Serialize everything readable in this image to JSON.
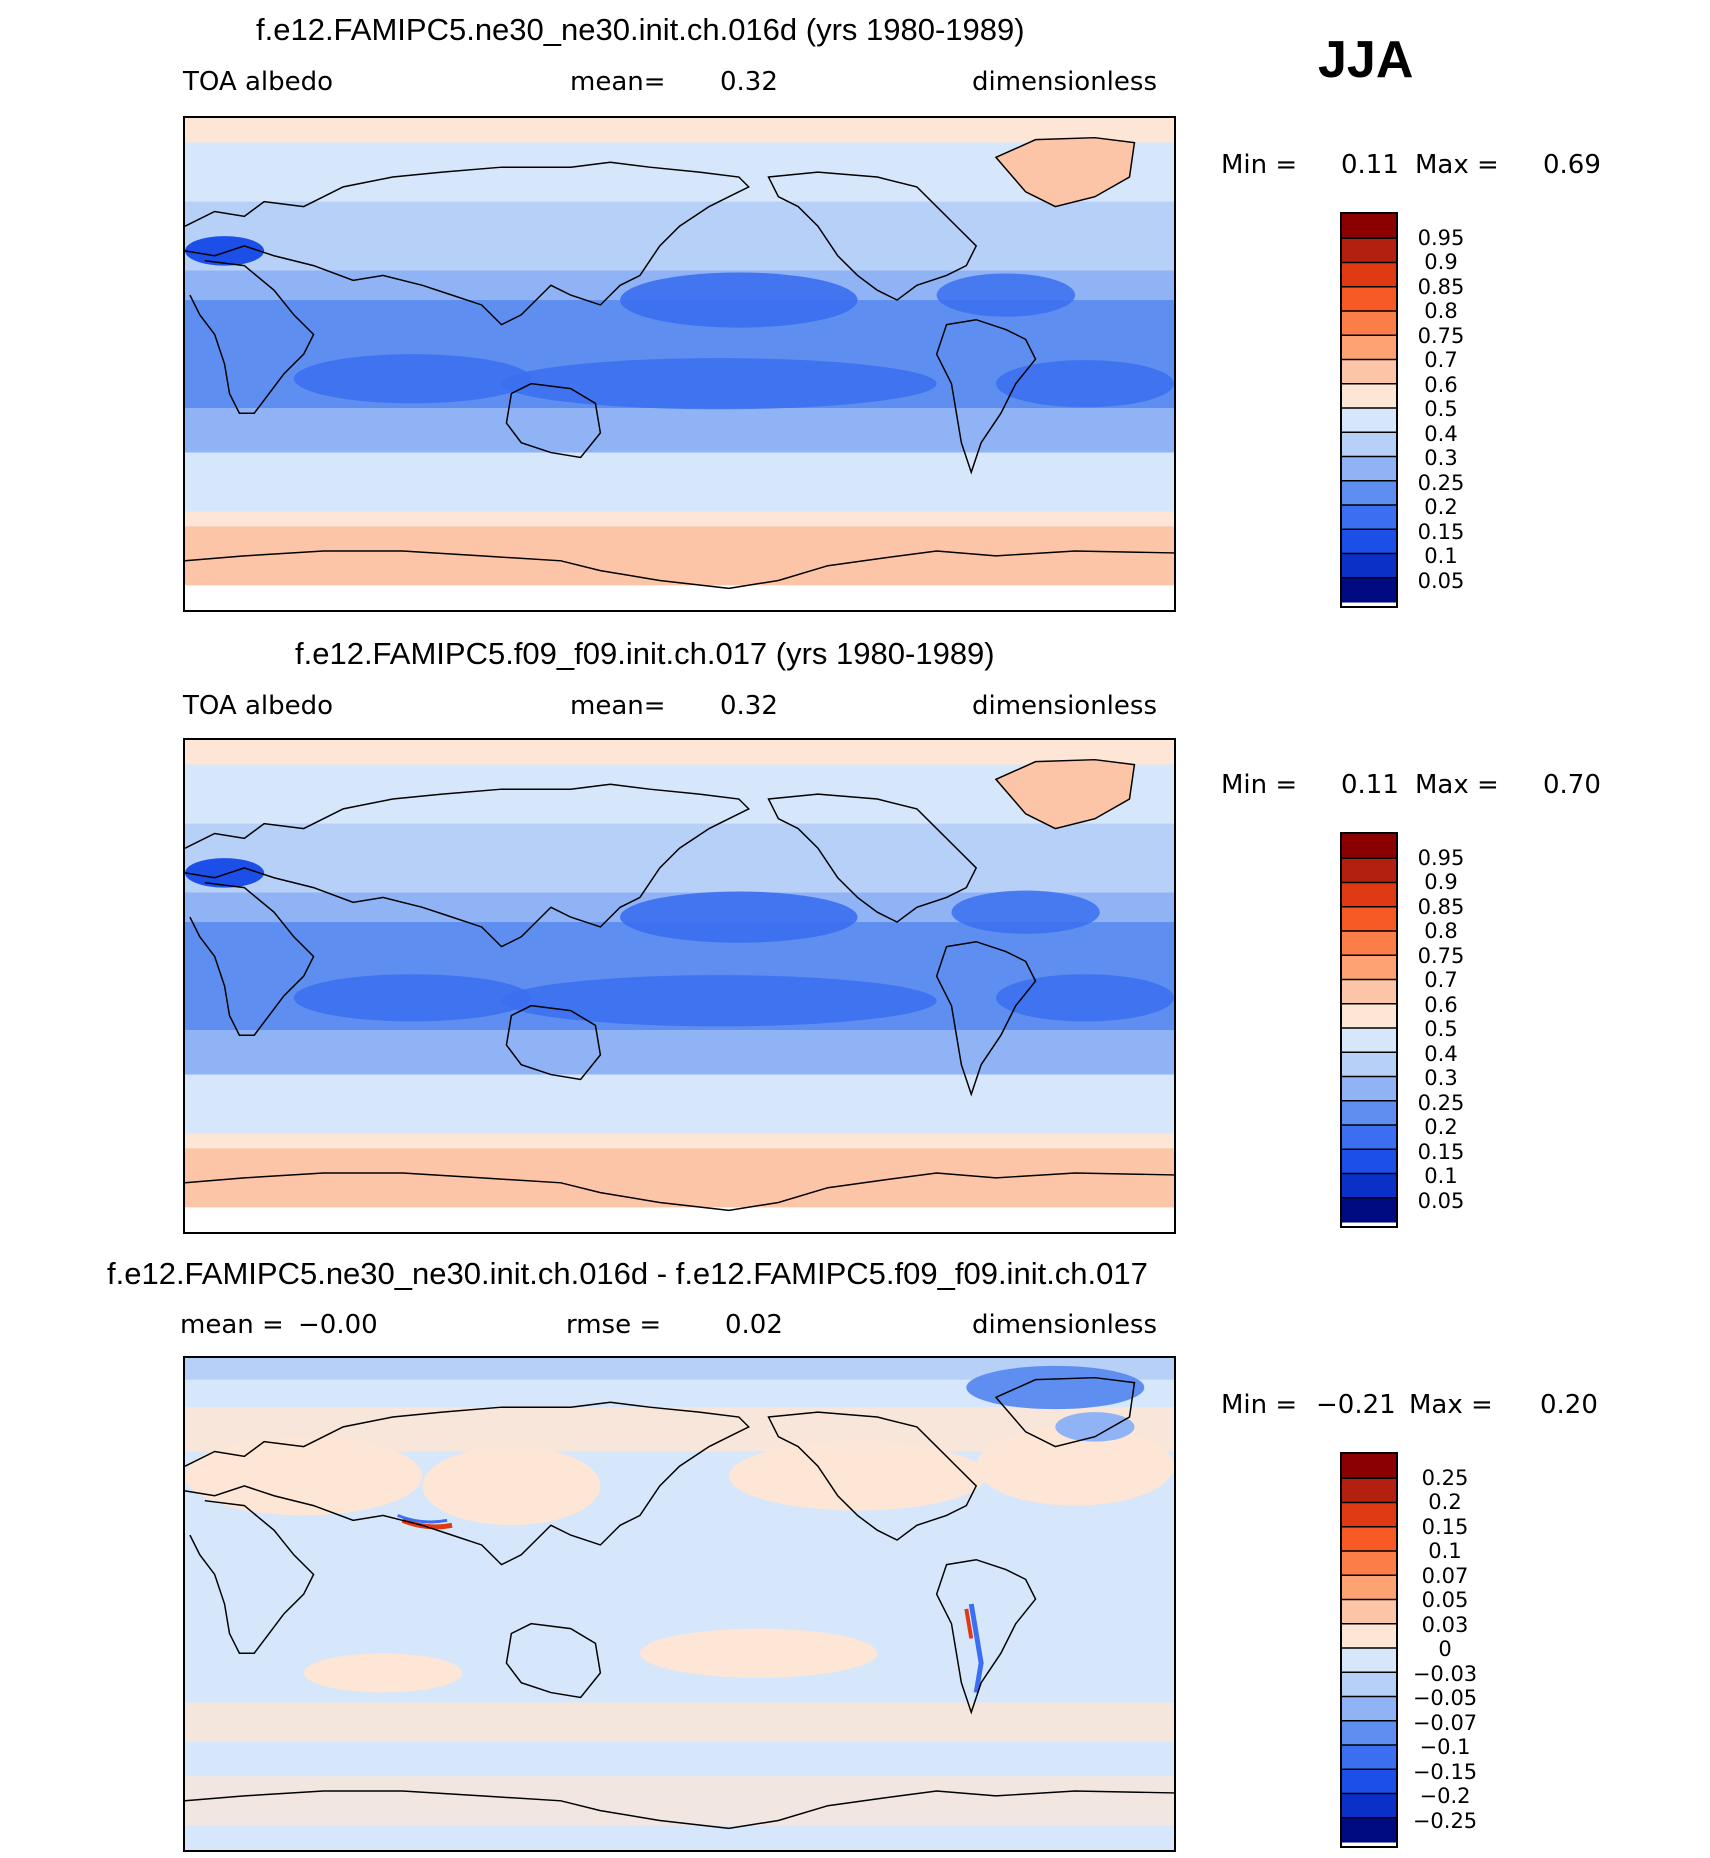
{
  "season": "JJA",
  "panels": [
    {
      "title": "f.e12.FAMIPC5.ne30_ne30.init.ch.016d (yrs 1980-1989)",
      "left_label": "TOA  albedo",
      "mid_label": "mean=",
      "mid_value": "0.32",
      "right_label": "dimensionless",
      "min_label": "Min  =",
      "min_value": "0.11",
      "max_label": "Max  =",
      "max_value": "0.69"
    },
    {
      "title": "f.e12.FAMIPC5.f09_f09.init.ch.017 (yrs 1980-1989)",
      "left_label": "TOA  albedo",
      "mid_label": "mean=",
      "mid_value": "0.32",
      "right_label": "dimensionless",
      "min_label": "Min  =",
      "min_value": "0.11",
      "max_label": "Max  =",
      "max_value": "0.70"
    },
    {
      "title": "f.e12.FAMIPC5.ne30_ne30.init.ch.016d - f.e12.FAMIPC5.f09_f09.init.ch.017",
      "left_label": "mean  =",
      "left_value": "−0.00",
      "mid_label": "rmse  =",
      "mid_value": "0.02",
      "right_label": "dimensionless",
      "min_label": "Min  =",
      "min_value": "−0.21",
      "max_label": "Max  =",
      "max_value": "0.20"
    }
  ],
  "colorbars": {
    "albedo": {
      "labels": [
        "0.95",
        "0.9",
        "0.85",
        "0.8",
        "0.75",
        "0.7",
        "0.6",
        "0.5",
        "0.4",
        "0.3",
        "0.25",
        "0.2",
        "0.15",
        "0.1",
        "0.05"
      ],
      "colors": [
        "#8b0000",
        "#b3200f",
        "#e03a14",
        "#f75a24",
        "#fb7e48",
        "#fca273",
        "#fdc5a7",
        "#fde6d6",
        "#d6e6fb",
        "#b6d0f8",
        "#8fb3f4",
        "#5e8ff0",
        "#3b6ef0",
        "#1c4ee8",
        "#0a30c8",
        "#000b82"
      ]
    },
    "diff": {
      "labels": [
        "0.25",
        "0.2",
        "0.15",
        "0.1",
        "0.07",
        "0.05",
        "0.03",
        "0",
        "−0.03",
        "−0.05",
        "−0.07",
        "−0.1",
        "−0.15",
        "−0.2",
        "−0.25"
      ],
      "colors": [
        "#8b0000",
        "#b3200f",
        "#e03a14",
        "#f75a24",
        "#fb7e48",
        "#fca273",
        "#fdc5a7",
        "#fde6d6",
        "#d6e6fb",
        "#b6d0f8",
        "#8fb3f4",
        "#5e8ff0",
        "#3b6ef0",
        "#1c4ee8",
        "#0a30c8",
        "#000b82"
      ]
    }
  }
}
